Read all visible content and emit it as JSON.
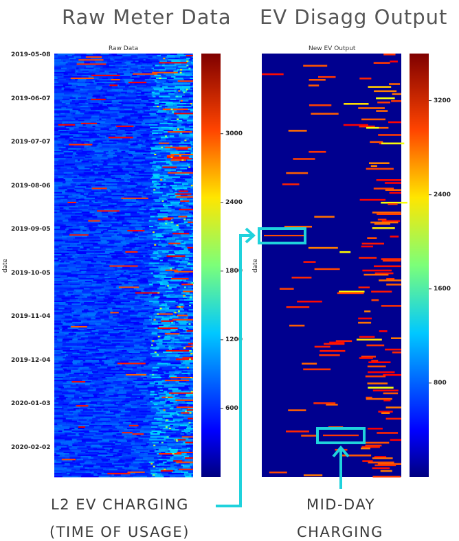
{
  "headers": {
    "left_title": "Raw Meter Data",
    "right_title": "EV Disagg Output"
  },
  "annotations": {
    "l2_line1": "L2 EV CHARGING",
    "l2_line2": "(TIME OF USAGE)",
    "midday_line1": "MID-DAY",
    "midday_line2": "CHARGING",
    "accent_color": "#1fd2dc"
  },
  "chart_data": [
    {
      "type": "heatmap",
      "title": "Raw Data",
      "ylabel": "date",
      "xlabel": "",
      "y_ticks": [
        "2019-05-08",
        "2019-06-07",
        "2019-07-07",
        "2019-08-06",
        "2019-09-05",
        "2019-10-05",
        "2019-11-04",
        "2019-12-04",
        "2020-01-03",
        "2020-02-02"
      ],
      "colorbar": {
        "ticks": [
          600,
          1200,
          1800,
          2400,
          3000
        ],
        "range": [
          0,
          3700
        ],
        "colormap": "jet"
      }
    },
    {
      "type": "heatmap",
      "title": "New EV Output",
      "ylabel": "date",
      "xlabel": "",
      "colorbar": {
        "ticks": [
          800,
          1600,
          2400,
          3200
        ],
        "range": [
          0,
          3600
        ],
        "colormap": "jet"
      }
    }
  ]
}
